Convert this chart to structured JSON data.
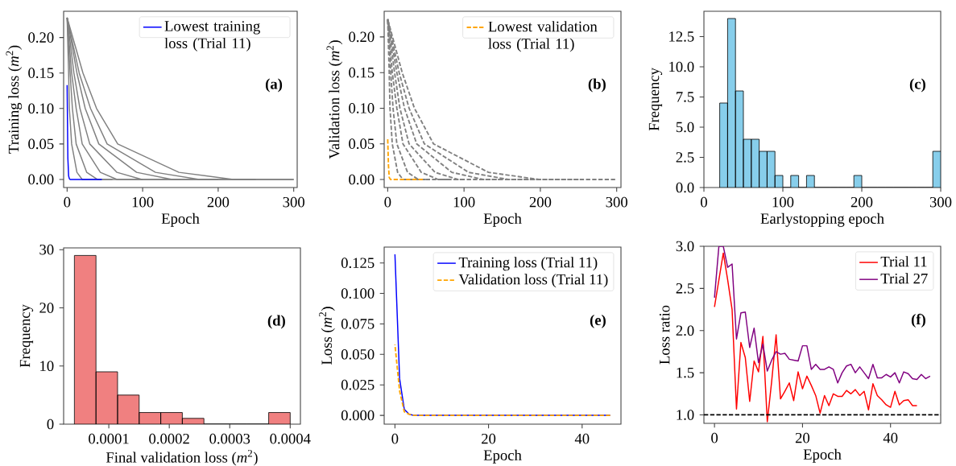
{
  "chart_data": [
    {
      "type": "line",
      "xlabel": "Epoch",
      "ylabel": "Training loss (*m*$^{2}$)",
      "annotations": [
        "**(a)**"
      ],
      "legend": "top right",
      "xlim": [
        -4.6,
        304.6
      ],
      "ylim": [
        -0.0114,
        0.237
      ],
      "xticks": [
        0,
        100,
        200,
        300
      ],
      "yticks": [
        {
          "value": 0,
          "label": "0.00"
        },
        {
          "value": 0.05,
          "label": "0.05"
        },
        {
          "value": 0.1,
          "label": "0.10"
        },
        {
          "value": 0.15,
          "label": "0.15"
        },
        {
          "value": 0.2,
          "label": "0.20"
        }
      ],
      "series": [
        {
          "color": "#808080",
          "x": [
            0,
            21,
            39,
            67,
            148,
            220,
            300
          ],
          "values": [
            0.228,
            0.15,
            0.1,
            0.05,
            0.01,
            0,
            0
          ]
        },
        {
          "color": "#808080",
          "x": [
            0,
            16,
            31,
            53,
            117,
            175,
            300
          ],
          "values": [
            0.228,
            0.15,
            0.1,
            0.05,
            0.01,
            0,
            0
          ]
        },
        {
          "color": "#808080",
          "x": [
            0,
            13,
            24,
            42,
            92,
            139,
            250
          ],
          "values": [
            0.228,
            0.15,
            0.1,
            0.05,
            0.01,
            0,
            0
          ]
        },
        {
          "color": "#808080",
          "x": [
            0,
            9,
            17,
            30,
            66,
            99,
            200
          ],
          "values": [
            0.228,
            0.15,
            0.1,
            0.05,
            0.01,
            0,
            0
          ]
        },
        {
          "color": "#808080",
          "x": [
            0,
            6,
            12,
            20,
            44,
            66,
            150
          ],
          "values": [
            0.228,
            0.15,
            0.1,
            0.05,
            0.01,
            0,
            0
          ]
        },
        {
          "color": "#808080",
          "x": [
            0,
            4,
            7,
            12,
            26,
            40,
            100
          ],
          "values": [
            0.228,
            0.15,
            0.1,
            0.05,
            0.01,
            0,
            0
          ]
        },
        {
          "color": "#808080",
          "x": [
            0,
            2,
            3,
            6,
            13,
            20,
            60
          ],
          "values": [
            0.228,
            0.15,
            0.1,
            0.05,
            0.01,
            0,
            0
          ]
        },
        {
          "name": "Lowest training loss (Trial 11)",
          "color": "#0000ff",
          "x": [
            0,
            1,
            2,
            3,
            4,
            46
          ],
          "values": [
            0.133,
            0.03,
            0.005,
            0.001,
            0,
            0
          ]
        }
      ]
    },
    {
      "type": "line",
      "xlabel": "Epoch",
      "ylabel": "Validation loss (*m*$^{2}$)",
      "annotations": [
        "**(b)**"
      ],
      "legend": "top right",
      "xlim": [
        -4.6,
        305.6
      ],
      "ylim": [
        -0.0113,
        0.236
      ],
      "xticks": [
        0,
        100,
        200,
        300
      ],
      "yticks": [
        {
          "value": 0,
          "label": "0.00"
        },
        {
          "value": 0.05,
          "label": "0.05"
        },
        {
          "value": 0.1,
          "label": "0.10"
        },
        {
          "value": 0.15,
          "label": "0.15"
        },
        {
          "value": 0.2,
          "label": "0.20"
        }
      ],
      "series": [
        {
          "color": "#808080",
          "line_style": "dashed",
          "x": [
            0,
            19,
            35,
            60,
            132,
            198,
            298
          ],
          "values": [
            0.225,
            0.15,
            0.1,
            0.05,
            0.01,
            0,
            0
          ]
        },
        {
          "color": "#808080",
          "line_style": "dashed",
          "x": [
            0,
            15,
            28,
            48,
            106,
            158,
            250
          ],
          "values": [
            0.225,
            0.15,
            0.1,
            0.05,
            0.01,
            0,
            0
          ]
        },
        {
          "color": "#808080",
          "line_style": "dashed",
          "x": [
            0,
            12,
            22,
            38,
            84,
            125,
            200
          ],
          "values": [
            0.225,
            0.15,
            0.1,
            0.05,
            0.01,
            0,
            0
          ]
        },
        {
          "color": "#808080",
          "line_style": "dashed",
          "x": [
            0,
            9,
            16,
            28,
            62,
            92,
            150
          ],
          "values": [
            0.225,
            0.15,
            0.1,
            0.05,
            0.01,
            0,
            0
          ]
        },
        {
          "color": "#808080",
          "line_style": "dashed",
          "x": [
            0,
            6,
            12,
            20,
            44,
            66,
            100
          ],
          "values": [
            0.225,
            0.15,
            0.1,
            0.05,
            0.01,
            0,
            0
          ]
        },
        {
          "color": "#808080",
          "line_style": "dashed",
          "x": [
            0,
            4,
            7,
            12,
            26,
            40,
            80
          ],
          "values": [
            0.225,
            0.15,
            0.1,
            0.05,
            0.01,
            0,
            0
          ]
        },
        {
          "color": "#808080",
          "line_style": "dashed",
          "x": [
            0,
            2,
            3,
            6,
            13,
            20,
            50
          ],
          "values": [
            0.225,
            0.15,
            0.1,
            0.05,
            0.01,
            0,
            0
          ]
        },
        {
          "name": "Lowest validation loss (Trial 11)",
          "color": "#ffa500",
          "line_style": "dashed",
          "x": [
            0,
            1,
            2,
            3,
            4,
            46
          ],
          "values": [
            0.058,
            0.02,
            0.003,
            0.001,
            0,
            0
          ]
        }
      ]
    },
    {
      "type": "histogram",
      "xlabel": "Earlystopping epoch",
      "ylabel": "Frequency",
      "annotations": [
        "**(c)**"
      ],
      "color": "#87ceeb",
      "bins": [
        20,
        30,
        40,
        50,
        60,
        70,
        80,
        90,
        100,
        110,
        120,
        130,
        140,
        150,
        160,
        170,
        180,
        190,
        200,
        210,
        220,
        230,
        240,
        250,
        260,
        270,
        280,
        290,
        300
      ],
      "values": [
        7,
        14,
        8,
        4,
        4,
        3,
        3,
        1,
        0,
        1,
        0,
        1,
        0,
        0,
        0,
        0,
        0,
        1,
        0,
        0,
        0,
        0,
        0,
        0,
        0,
        0,
        0,
        3
      ],
      "xlim": [
        0,
        300
      ],
      "ylim": [
        0,
        14.6
      ],
      "xticks": [
        0,
        100,
        200,
        300
      ],
      "yticks": [
        {
          "value": 0,
          "label": "0.0"
        },
        {
          "value": 2.5,
          "label": "2.5"
        },
        {
          "value": 5,
          "label": "5.0"
        },
        {
          "value": 7.5,
          "label": "7.5"
        },
        {
          "value": 10,
          "label": "10.0"
        },
        {
          "value": 12.5,
          "label": "12.5"
        }
      ]
    },
    {
      "type": "histogram",
      "xlabel": "Final validation loss (*m*$^{2}$)",
      "ylabel": "Frequency",
      "annotations": [
        "**(d)**"
      ],
      "color": "#f08080",
      "bins": [
        4.31e-05,
        7.88e-05,
        0.0001145,
        0.0001502,
        0.0001859,
        0.0002216,
        0.0002573,
        0.000293,
        0.0003287,
        0.0003644,
        0.0004
      ],
      "values": [
        29,
        9,
        5,
        2,
        2,
        1,
        0,
        0,
        0,
        2
      ],
      "xlim": [
        2.53e-05,
        0.0004169
      ],
      "ylim": [
        0,
        30.3
      ],
      "xticks": [
        0.0001,
        0.0002,
        0.0003,
        0.0004
      ],
      "yticks": [
        0,
        10,
        20,
        30
      ]
    },
    {
      "type": "line",
      "xlabel": "Epoch",
      "ylabel": "Loss (*m*$^{2}$)",
      "annotations": [
        "**(e)**"
      ],
      "legend": "top right",
      "xlim": [
        -2.3,
        48.3
      ],
      "ylim": [
        -0.0072,
        0.138
      ],
      "xticks": [
        0,
        20,
        40
      ],
      "yticks": [
        {
          "value": 0,
          "label": "0.000"
        },
        {
          "value": 0.025,
          "label": "0.025"
        },
        {
          "value": 0.05,
          "label": "0.050"
        },
        {
          "value": 0.075,
          "label": "0.075"
        },
        {
          "value": 0.1,
          "label": "0.100"
        },
        {
          "value": 0.125,
          "label": "0.125"
        }
      ],
      "series": [
        {
          "name": "Training loss (Trial 11)",
          "color": "#0000ff",
          "x": [
            0,
            1,
            2,
            3,
            4,
            46
          ],
          "values": [
            0.132,
            0.03,
            0.005,
            0.001,
            0,
            0
          ]
        },
        {
          "name": "Validation loss (Trial 11)",
          "color": "#ffa500",
          "line_style": "dashed",
          "x": [
            0,
            1,
            2,
            3,
            4,
            46
          ],
          "values": [
            0.058,
            0.02,
            0.003,
            0.001,
            0,
            0
          ]
        }
      ]
    },
    {
      "type": "line",
      "xlabel": "Epoch",
      "ylabel": "Loss ratio",
      "annotations": [
        "**(f)**"
      ],
      "legend": "top right",
      "xlim": [
        -2.4,
        51.4
      ],
      "ylim": [
        0.9,
        3.0
      ],
      "xticks": [
        0,
        20,
        40
      ],
      "yticks": [
        {
          "value": 1,
          "label": "1.0"
        },
        {
          "value": 1.5,
          "label": "1.5"
        },
        {
          "value": 2,
          "label": "2.0"
        },
        {
          "value": 2.5,
          "label": "2.5"
        },
        {
          "value": 3,
          "label": "3.0"
        }
      ],
      "ref_lines": [
        {
          "axis": "y",
          "value": 1.0,
          "color": "#000000",
          "line_style": "dashed"
        }
      ],
      "series": [
        {
          "name": "Trial 11",
          "color": "#ff0000",
          "x": [
            0,
            1,
            2,
            3,
            4,
            5,
            6,
            7,
            8,
            9,
            10,
            11,
            12,
            13,
            14,
            15,
            16,
            17,
            18,
            19,
            20,
            21,
            22,
            23,
            24,
            25,
            26,
            27,
            28,
            29,
            30,
            31,
            32,
            33,
            34,
            35,
            36,
            37,
            38,
            39,
            40,
            41,
            42,
            43,
            44,
            45,
            46
          ],
          "values": [
            2.28,
            2.6,
            2.92,
            2.6,
            2.25,
            1.07,
            1.86,
            1.68,
            1.16,
            1.64,
            1.51,
            1.93,
            0.92,
            1.4,
            1.95,
            1.19,
            1.28,
            1.38,
            1.17,
            1.51,
            1.31,
            1.46,
            1.35,
            1.23,
            1.02,
            1.23,
            1.11,
            1.25,
            1.22,
            1.22,
            1.29,
            1.25,
            1.3,
            1.23,
            1.28,
            1.06,
            1.37,
            1.23,
            1.18,
            1.12,
            1.09,
            1.28,
            1.12,
            1.17,
            1.18,
            1.11,
            1.11
          ]
        },
        {
          "name": "Trial 27",
          "color": "#800080",
          "x": [
            0,
            1,
            2,
            3,
            4,
            5,
            6,
            7,
            8,
            9,
            10,
            11,
            12,
            13,
            14,
            15,
            16,
            17,
            18,
            19,
            20,
            21,
            22,
            23,
            24,
            25,
            26,
            27,
            28,
            29,
            30,
            31,
            32,
            33,
            34,
            35,
            36,
            37,
            38,
            39,
            40,
            41,
            42,
            43,
            44,
            45,
            46,
            47,
            48,
            49
          ],
          "values": [
            2.39,
            3.0,
            3.0,
            2.75,
            2.79,
            1.9,
            2.21,
            2.22,
            1.8,
            2.03,
            1.62,
            1.84,
            1.52,
            1.65,
            1.75,
            1.72,
            1.73,
            1.66,
            1.65,
            1.64,
            1.82,
            1.82,
            1.54,
            1.6,
            1.54,
            1.54,
            1.57,
            1.54,
            1.38,
            1.5,
            1.58,
            1.6,
            1.5,
            1.57,
            1.5,
            1.43,
            1.6,
            1.44,
            1.44,
            1.48,
            1.45,
            1.5,
            1.38,
            1.51,
            1.49,
            1.43,
            1.42,
            1.48,
            1.43,
            1.46
          ]
        }
      ]
    }
  ]
}
